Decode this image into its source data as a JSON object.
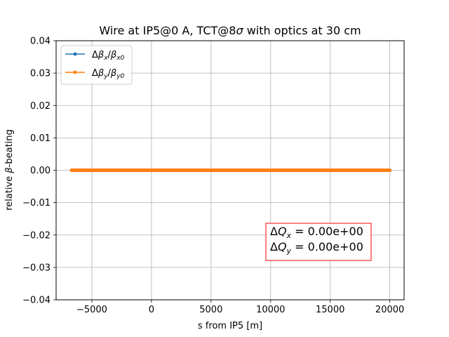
{
  "chart_data": {
    "type": "line",
    "title_parts": [
      "Wire at IP5@0 A, TCT@8",
      "σ",
      " with optics at 30 cm"
    ],
    "xlabel": "s from IP5 [m]",
    "ylabel_parts": [
      "relative ",
      "β",
      "-beating"
    ],
    "xlim": [
      -8000,
      21200
    ],
    "ylim": [
      -0.04,
      0.04
    ],
    "xticks": [
      -5000,
      0,
      5000,
      10000,
      15000,
      20000
    ],
    "xtick_labels": [
      "−5000",
      "0",
      "5000",
      "10000",
      "15000",
      "20000"
    ],
    "yticks": [
      -0.04,
      -0.03,
      -0.02,
      -0.01,
      0.0,
      0.01,
      0.02,
      0.03,
      0.04
    ],
    "ytick_labels": [
      "−0.04",
      "−0.03",
      "−0.02",
      "−0.01",
      "0.00",
      "0.01",
      "0.02",
      "0.03",
      "0.04"
    ],
    "grid": true,
    "legend_position": "upper-left",
    "series": [
      {
        "name": "Δβx/βx0",
        "name_parts": [
          "Δ",
          "β",
          "x",
          "/",
          "β",
          "x0"
        ],
        "color": "#1f77b4",
        "x": [
          -6700,
          20000
        ],
        "y": [
          0.0,
          0.0
        ]
      },
      {
        "name": "Δβy/βy0",
        "name_parts": [
          "Δ",
          "β",
          "y",
          "/",
          "β",
          "y0"
        ],
        "color": "#ff7f0e",
        "x": [
          -6700,
          20000
        ],
        "y": [
          0.0,
          0.0
        ]
      }
    ],
    "annotation": {
      "lines": [
        {
          "parts": [
            "Δ",
            "Q",
            "x",
            " = 0.00e+00"
          ]
        },
        {
          "parts": [
            "Δ",
            "Q",
            "y",
            " = 0.00e+00"
          ]
        }
      ],
      "border_color": "#ff0000",
      "position": "lower-right"
    }
  }
}
